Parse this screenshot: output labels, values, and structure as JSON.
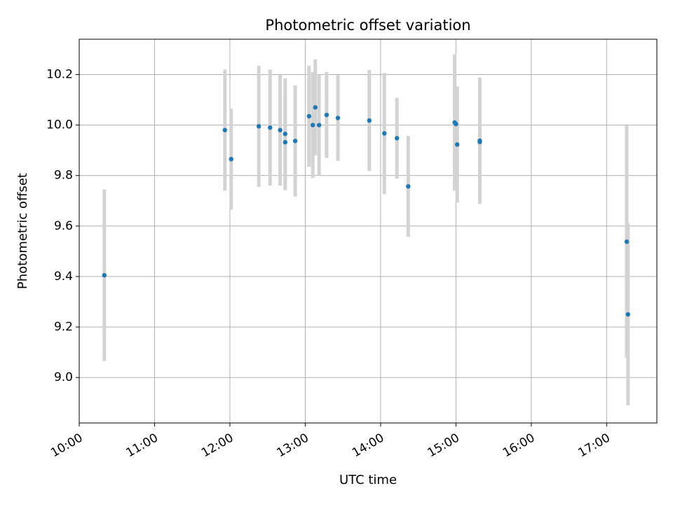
{
  "chart_data": {
    "type": "scatter",
    "title": "Photometric offset variation",
    "xlabel": "UTC time",
    "ylabel": "Photometric offset",
    "x_is_time": true,
    "xlim": [
      "10:00",
      "17:40"
    ],
    "ylim": [
      8.82,
      10.34
    ],
    "xticks": [
      "10:00",
      "11:00",
      "12:00",
      "13:00",
      "14:00",
      "15:00",
      "16:00",
      "17:00"
    ],
    "yticks": [
      "9.0",
      "9.2",
      "9.4",
      "9.6",
      "9.8",
      "10.0",
      "10.2"
    ],
    "grid": true,
    "colors": {
      "point": "#1f77b4",
      "errorbar": "#d3d3d3",
      "grid": "#b0b0b0"
    },
    "points": [
      {
        "x": "10:20",
        "y": 9.405,
        "err": 0.34
      },
      {
        "x": "11:56",
        "y": 9.98,
        "err": 0.24
      },
      {
        "x": "12:01",
        "y": 9.865,
        "err": 0.2
      },
      {
        "x": "12:23",
        "y": 9.995,
        "err": 0.24
      },
      {
        "x": "12:32",
        "y": 9.99,
        "err": 0.23
      },
      {
        "x": "12:40",
        "y": 9.98,
        "err": 0.22
      },
      {
        "x": "12:44",
        "y": 9.932,
        "err": 0.19
      },
      {
        "x": "12:44",
        "y": 9.965,
        "err": 0.22
      },
      {
        "x": "12:52",
        "y": 9.937,
        "err": 0.22
      },
      {
        "x": "13:03",
        "y": 10.035,
        "err": 0.2
      },
      {
        "x": "13:06",
        "y": 10.0,
        "err": 0.21
      },
      {
        "x": "13:08",
        "y": 10.07,
        "err": 0.19
      },
      {
        "x": "13:11",
        "y": 10.0,
        "err": 0.2
      },
      {
        "x": "13:17",
        "y": 10.04,
        "err": 0.17
      },
      {
        "x": "13:26",
        "y": 10.028,
        "err": 0.17
      },
      {
        "x": "13:51",
        "y": 10.018,
        "err": 0.2
      },
      {
        "x": "14:03",
        "y": 9.967,
        "err": 0.24
      },
      {
        "x": "14:13",
        "y": 9.948,
        "err": 0.16
      },
      {
        "x": "14:22",
        "y": 9.757,
        "err": 0.2
      },
      {
        "x": "14:59",
        "y": 10.01,
        "err": 0.27
      },
      {
        "x": "15:00",
        "y": 10.004,
        "err": 0.14
      },
      {
        "x": "15:01",
        "y": 9.923,
        "err": 0.23
      },
      {
        "x": "15:19",
        "y": 9.938,
        "err": 0.25
      },
      {
        "x": "15:19",
        "y": 9.933,
        "err": 0.24
      },
      {
        "x": "17:16",
        "y": 9.538,
        "err": 0.46
      },
      {
        "x": "17:17",
        "y": 9.25,
        "err": 0.36
      }
    ]
  }
}
